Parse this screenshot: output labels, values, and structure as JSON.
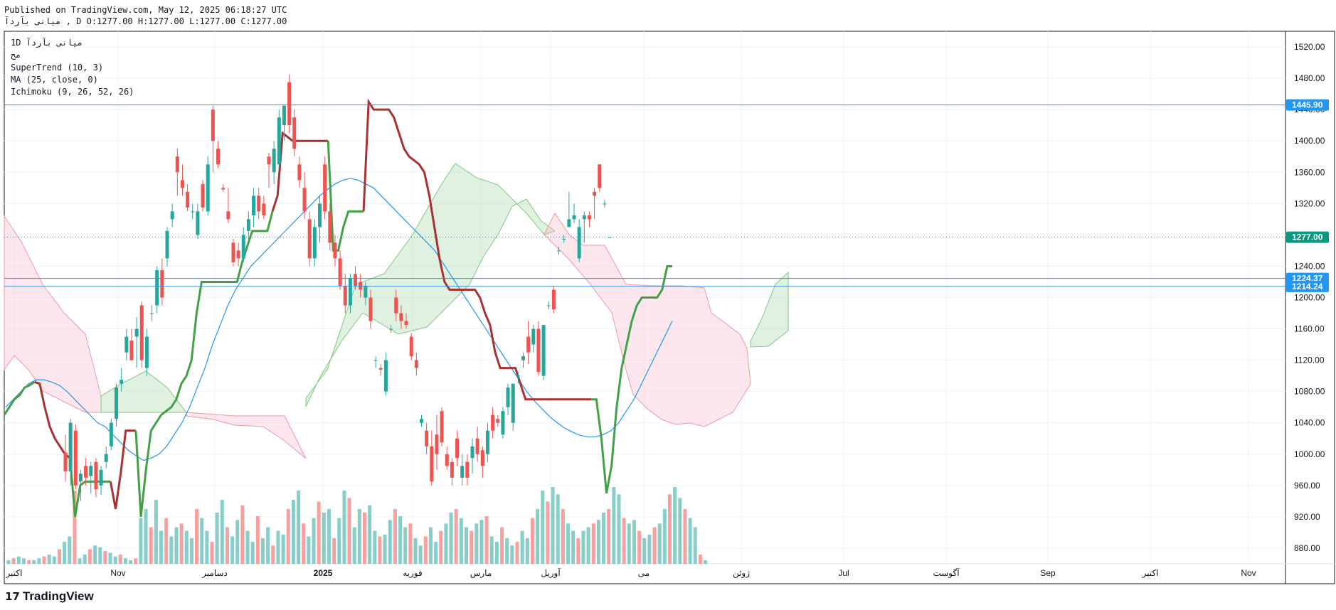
{
  "header": {
    "published": "Published on TradingView.com, May 12, 2025 06:18:27 UTC",
    "symbol_line": "میانی   بآرد‌آ  , D O:1277.00 H:1277.00 L:1277.00 C:1277.00"
  },
  "legend": {
    "symbol": "1D  میانی  بآرد‌آ",
    "sub": "مح",
    "supertrend": "SuperTrend (10, 3)",
    "ma": "MA (25, close, 0)",
    "ichimoku": "Ichimoku (9, 26, 52, 26)"
  },
  "brand": {
    "logo_icon": "tradingview-logo-icon",
    "name": "TradingView",
    "mark": "17"
  },
  "colors": {
    "up": "#26a69a",
    "down": "#ef5350",
    "supertrend_up": "#43a047",
    "supertrend_down": "#a83232",
    "ma": "#2196f3",
    "cloud_green": "#a5d6a7",
    "cloud_red": "#f8bbd0",
    "hline": "#2196f3",
    "last_price": "#089981"
  },
  "chart_data": {
    "type": "candlestick",
    "ylim": [
      860,
      1540
    ],
    "y_ticks": [
      "880.00",
      "920.00",
      "960.00",
      "1000.00",
      "1040.00",
      "1080.00",
      "1120.00",
      "1160.00",
      "1200.00",
      "1240.00",
      "1280.00",
      "1320.00",
      "1360.00",
      "1400.00",
      "1440.00",
      "1480.00",
      "1520.00"
    ],
    "x_labels": [
      "اکتبر",
      "Nov",
      "دسامبر",
      "2025",
      "فوریه",
      "مارس",
      "آوریل",
      "می",
      "ژوئن",
      "Jul",
      "آگوست",
      "Sep",
      "اکتبر",
      "Nov"
    ],
    "price_labels": [
      {
        "value": 1445.9,
        "label": "1445.90",
        "color": "#2196f3"
      },
      {
        "value": 1277.0,
        "label": "1277.00",
        "color": "#089981"
      },
      {
        "value": 1224.37,
        "label": "1224.37",
        "color": "#2196f3"
      },
      {
        "value": 1214.24,
        "label": "1214.24",
        "color": "#2196f3"
      }
    ],
    "horizontal_lines": [
      1445.9,
      1224.37,
      1214.24
    ],
    "last_price_line": 1277.0,
    "candles": [
      {
        "o": 1002,
        "h": 1025,
        "l": 965,
        "c": 978
      },
      {
        "o": 978,
        "h": 1045,
        "l": 960,
        "c": 1040
      },
      {
        "o": 1030,
        "h": 1038,
        "l": 955,
        "c": 960
      },
      {
        "o": 965,
        "h": 980,
        "l": 940,
        "c": 975
      },
      {
        "o": 985,
        "h": 995,
        "l": 960,
        "c": 970
      },
      {
        "o": 972,
        "h": 990,
        "l": 950,
        "c": 985
      },
      {
        "o": 990,
        "h": 995,
        "l": 945,
        "c": 955
      },
      {
        "o": 960,
        "h": 985,
        "l": 948,
        "c": 980
      },
      {
        "o": 990,
        "h": 1010,
        "l": 982,
        "c": 1000
      },
      {
        "o": 1010,
        "h": 1045,
        "l": 1005,
        "c": 1040
      },
      {
        "o": 1045,
        "h": 1090,
        "l": 1035,
        "c": 1085
      },
      {
        "o": 1090,
        "h": 1110,
        "l": 1080,
        "c": 1095
      },
      {
        "o": 1130,
        "h": 1160,
        "l": 1120,
        "c": 1150
      },
      {
        "o": 1145,
        "h": 1160,
        "l": 1120,
        "c": 1120
      },
      {
        "o": 1150,
        "h": 1175,
        "l": 1110,
        "c": 1160
      },
      {
        "o": 1190,
        "h": 1195,
        "l": 1110,
        "c": 1120
      },
      {
        "o": 1110,
        "h": 1160,
        "l": 1100,
        "c": 1150
      },
      {
        "o": 1180,
        "h": 1190,
        "l": 1170,
        "c": 1180
      },
      {
        "o": 1190,
        "h": 1240,
        "l": 1180,
        "c": 1235
      },
      {
        "o": 1235,
        "h": 1250,
        "l": 1190,
        "c": 1200
      },
      {
        "o": 1250,
        "h": 1290,
        "l": 1240,
        "c": 1285
      },
      {
        "o": 1300,
        "h": 1320,
        "l": 1290,
        "c": 1310
      },
      {
        "o": 1380,
        "h": 1390,
        "l": 1330,
        "c": 1360
      },
      {
        "o": 1350,
        "h": 1370,
        "l": 1330,
        "c": 1340
      },
      {
        "o": 1335,
        "h": 1345,
        "l": 1310,
        "c": 1315
      },
      {
        "o": 1310,
        "h": 1320,
        "l": 1300,
        "c": 1310
      },
      {
        "o": 1280,
        "h": 1320,
        "l": 1275,
        "c": 1310
      },
      {
        "o": 1345,
        "h": 1350,
        "l": 1310,
        "c": 1315
      },
      {
        "o": 1310,
        "h": 1380,
        "l": 1305,
        "c": 1370
      },
      {
        "o": 1440,
        "h": 1445,
        "l": 1360,
        "c": 1400
      },
      {
        "o": 1390,
        "h": 1400,
        "l": 1365,
        "c": 1370
      },
      {
        "o": 1340,
        "h": 1345,
        "l": 1335,
        "c": 1338
      },
      {
        "o": 1310,
        "h": 1340,
        "l": 1295,
        "c": 1300
      },
      {
        "o": 1270,
        "h": 1275,
        "l": 1240,
        "c": 1245
      },
      {
        "o": 1260,
        "h": 1270,
        "l": 1240,
        "c": 1250
      },
      {
        "o": 1250,
        "h": 1290,
        "l": 1245,
        "c": 1280
      },
      {
        "o": 1285,
        "h": 1310,
        "l": 1270,
        "c": 1300
      },
      {
        "o": 1305,
        "h": 1340,
        "l": 1290,
        "c": 1330
      },
      {
        "o": 1330,
        "h": 1340,
        "l": 1300,
        "c": 1310
      },
      {
        "o": 1320,
        "h": 1330,
        "l": 1300,
        "c": 1305
      },
      {
        "o": 1380,
        "h": 1385,
        "l": 1340,
        "c": 1370
      },
      {
        "o": 1360,
        "h": 1400,
        "l": 1345,
        "c": 1390
      },
      {
        "o": 1370,
        "h": 1440,
        "l": 1365,
        "c": 1430
      },
      {
        "o": 1420,
        "h": 1440,
        "l": 1400,
        "c": 1445
      },
      {
        "o": 1475,
        "h": 1485,
        "l": 1410,
        "c": 1420
      },
      {
        "o": 1430,
        "h": 1440,
        "l": 1380,
        "c": 1390
      },
      {
        "o": 1370,
        "h": 1380,
        "l": 1340,
        "c": 1350
      },
      {
        "o": 1340,
        "h": 1360,
        "l": 1300,
        "c": 1310
      },
      {
        "o": 1300,
        "h": 1310,
        "l": 1240,
        "c": 1250
      },
      {
        "o": 1250,
        "h": 1300,
        "l": 1240,
        "c": 1290
      },
      {
        "o": 1290,
        "h": 1330,
        "l": 1270,
        "c": 1320
      },
      {
        "o": 1370,
        "h": 1380,
        "l": 1300,
        "c": 1310
      },
      {
        "o": 1310,
        "h": 1320,
        "l": 1260,
        "c": 1270
      },
      {
        "o": 1270,
        "h": 1280,
        "l": 1240,
        "c": 1250
      },
      {
        "o": 1250,
        "h": 1260,
        "l": 1210,
        "c": 1215
      },
      {
        "o": 1215,
        "h": 1230,
        "l": 1180,
        "c": 1190
      },
      {
        "o": 1190,
        "h": 1230,
        "l": 1180,
        "c": 1225
      },
      {
        "o": 1230,
        "h": 1240,
        "l": 1210,
        "c": 1215
      },
      {
        "o": 1220,
        "h": 1230,
        "l": 1200,
        "c": 1210
      },
      {
        "o": 1200,
        "h": 1220,
        "l": 1190,
        "c": 1215
      },
      {
        "o": 1200,
        "h": 1210,
        "l": 1160,
        "c": 1170
      },
      {
        "o": 1120,
        "h": 1125,
        "l": 1110,
        "c": 1120
      },
      {
        "o": 1110,
        "h": 1115,
        "l": 1100,
        "c": 1108
      },
      {
        "o": 1080,
        "h": 1130,
        "l": 1075,
        "c": 1120
      },
      {
        "o": 1160,
        "h": 1165,
        "l": 1155,
        "c": 1160
      },
      {
        "o": 1200,
        "h": 1210,
        "l": 1170,
        "c": 1180
      },
      {
        "o": 1180,
        "h": 1190,
        "l": 1160,
        "c": 1170
      },
      {
        "o": 1170,
        "h": 1180,
        "l": 1160,
        "c": 1165
      },
      {
        "o": 1150,
        "h": 1155,
        "l": 1120,
        "c": 1125
      },
      {
        "o": 1120,
        "h": 1130,
        "l": 1100,
        "c": 1110
      },
      {
        "o": 1040,
        "h": 1050,
        "l": 1035,
        "c": 1045
      },
      {
        "o": 1030,
        "h": 1040,
        "l": 1000,
        "c": 1010
      },
      {
        "o": 1010,
        "h": 1030,
        "l": 960,
        "c": 965
      },
      {
        "o": 1025,
        "h": 1050,
        "l": 980,
        "c": 1000
      },
      {
        "o": 1055,
        "h": 1060,
        "l": 1010,
        "c": 1015
      },
      {
        "o": 1000,
        "h": 1010,
        "l": 980,
        "c": 985
      },
      {
        "o": 990,
        "h": 995,
        "l": 960,
        "c": 970
      },
      {
        "o": 1020,
        "h": 1030,
        "l": 985,
        "c": 995
      },
      {
        "o": 970,
        "h": 1000,
        "l": 960,
        "c": 985
      },
      {
        "o": 990,
        "h": 1000,
        "l": 960,
        "c": 970
      },
      {
        "o": 995,
        "h": 1020,
        "l": 975,
        "c": 1010
      },
      {
        "o": 1020,
        "h": 1035,
        "l": 990,
        "c": 1000
      },
      {
        "o": 1005,
        "h": 1010,
        "l": 970,
        "c": 985
      },
      {
        "o": 1000,
        "h": 1040,
        "l": 990,
        "c": 1030
      },
      {
        "o": 1050,
        "h": 1060,
        "l": 1020,
        "c": 1030
      },
      {
        "o": 1045,
        "h": 1050,
        "l": 1035,
        "c": 1040
      },
      {
        "o": 1025,
        "h": 1060,
        "l": 1020,
        "c": 1055
      },
      {
        "o": 1060,
        "h": 1090,
        "l": 1050,
        "c": 1085
      },
      {
        "o": 1040,
        "h": 1090,
        "l": 1030,
        "c": 1090
      },
      {
        "o": 1100,
        "h": 1105,
        "l": 1090,
        "c": 1100
      },
      {
        "o": 1120,
        "h": 1130,
        "l": 1110,
        "c": 1125
      },
      {
        "o": 1150,
        "h": 1170,
        "l": 1115,
        "c": 1130
      },
      {
        "o": 1140,
        "h": 1165,
        "l": 1130,
        "c": 1160
      },
      {
        "o": 1160,
        "h": 1170,
        "l": 1100,
        "c": 1105
      },
      {
        "o": 1100,
        "h": 1165,
        "l": 1095,
        "c": 1165
      },
      {
        "o": 1190,
        "h": 1195,
        "l": 1185,
        "c": 1190
      },
      {
        "o": 1210,
        "h": 1215,
        "l": 1180,
        "c": 1185
      },
      {
        "o": 1260,
        "h": 1265,
        "l": 1255,
        "c": 1260
      },
      {
        "o": 1275,
        "h": 1280,
        "l": 1270,
        "c": 1275
      },
      {
        "o": 1290,
        "h": 1335,
        "l": 1290,
        "c": 1300
      },
      {
        "o": 1300,
        "h": 1320,
        "l": 1295,
        "c": 1305
      },
      {
        "o": 1250,
        "h": 1300,
        "l": 1245,
        "c": 1290
      },
      {
        "o": 1300,
        "h": 1310,
        "l": 1270,
        "c": 1305
      },
      {
        "o": 1305,
        "h": 1310,
        "l": 1290,
        "c": 1300
      },
      {
        "o": 1335,
        "h": 1340,
        "l": 1300,
        "c": 1330
      },
      {
        "o": 1370,
        "h": 1370,
        "l": 1335,
        "c": 1340
      },
      {
        "o": 1320,
        "h": 1325,
        "l": 1315,
        "c": 1320
      },
      {
        "o": 1277,
        "h": 1277,
        "l": 1277,
        "c": 1277
      }
    ],
    "supertrend": [
      1050,
      1060,
      1070,
      1075,
      1085,
      1088,
      1092,
      1090,
      1060,
      1035,
      1020,
      1010,
      1000,
      995,
      920,
      960,
      965,
      965,
      965,
      965,
      965,
      965,
      930,
      975,
      1030,
      1030,
      1030,
      920,
      980,
      1030,
      1040,
      1050,
      1055,
      1060,
      1070,
      1090,
      1100,
      1120,
      1180,
      1220,
      1220,
      1220,
      1220,
      1220,
      1220,
      1220,
      1220,
      1245,
      1265,
      1285,
      1285,
      1285,
      1285,
      1310,
      1330,
      1410,
      1405,
      1400,
      1400,
      1400,
      1400,
      1400,
      1400,
      1400,
      1400,
      1260,
      1260,
      1290,
      1310,
      1310,
      1310,
      1310,
      1450,
      1440,
      1440,
      1440,
      1440,
      1430,
      1410,
      1390,
      1380,
      1375,
      1370,
      1360,
      1330,
      1290,
      1250,
      1220,
      1210,
      1210,
      1210,
      1210,
      1210,
      1210,
      1200,
      1180,
      1165,
      1130,
      1110,
      1110,
      1110,
      1110,
      1090,
      1070,
      1070,
      1070,
      1070,
      1070,
      1070,
      1070,
      1070,
      1070,
      1070,
      1070,
      1070,
      1070,
      1070,
      1070,
      1020,
      950,
      985,
      1060,
      1110,
      1140,
      1170,
      1190,
      1200,
      1200,
      1200,
      1200,
      1210,
      1240,
      1240
    ],
    "ma": [
      1060,
      1070,
      1080,
      1090,
      1095,
      1095,
      1092,
      1088,
      1080,
      1070,
      1060,
      1050,
      1040,
      1035,
      1025,
      1015,
      1005,
      998,
      992,
      995,
      1000,
      1010,
      1025,
      1040,
      1060,
      1085,
      1110,
      1140,
      1165,
      1190,
      1210,
      1225,
      1240,
      1250,
      1260,
      1270,
      1280,
      1290,
      1300,
      1310,
      1320,
      1330,
      1338,
      1345,
      1350,
      1352,
      1350,
      1345,
      1340,
      1330,
      1320,
      1310,
      1300,
      1290,
      1280,
      1270,
      1260,
      1245,
      1230,
      1215,
      1200,
      1185,
      1170,
      1155,
      1140,
      1125,
      1110,
      1095,
      1080,
      1068,
      1058,
      1048,
      1040,
      1033,
      1028,
      1024,
      1022,
      1022,
      1025,
      1030,
      1040,
      1055,
      1070,
      1090,
      1110,
      1130,
      1150,
      1170
    ],
    "volume": [
      2,
      3,
      4,
      3,
      2,
      2,
      3,
      4,
      5,
      4,
      8,
      12,
      15,
      40,
      3,
      5,
      8,
      10,
      9,
      7,
      6,
      4,
      5,
      3,
      2,
      3,
      25,
      30,
      20,
      35,
      18,
      25,
      15,
      20,
      22,
      18,
      14,
      30,
      25,
      18,
      12,
      28,
      35,
      20,
      15,
      24,
      32,
      18,
      12,
      26,
      14,
      20,
      10,
      18,
      16,
      30,
      35,
      40,
      22,
      15,
      25,
      34,
      28,
      30,
      14,
      25,
      40,
      36,
      20,
      30,
      28,
      32,
      18,
      15,
      16,
      24,
      30,
      26,
      20,
      22,
      14,
      10,
      15,
      20,
      12,
      18,
      22,
      28,
      30,
      25,
      20,
      18,
      22,
      24,
      26,
      15,
      12,
      20,
      14,
      10,
      12,
      18,
      14,
      25,
      30,
      40,
      34,
      42,
      38,
      30,
      22,
      18,
      14,
      18,
      20,
      22,
      24,
      28,
      30,
      42,
      38,
      25,
      22,
      24,
      18,
      14,
      16,
      20,
      22,
      30,
      38,
      42,
      36,
      30,
      25,
      20,
      5,
      2
    ]
  }
}
